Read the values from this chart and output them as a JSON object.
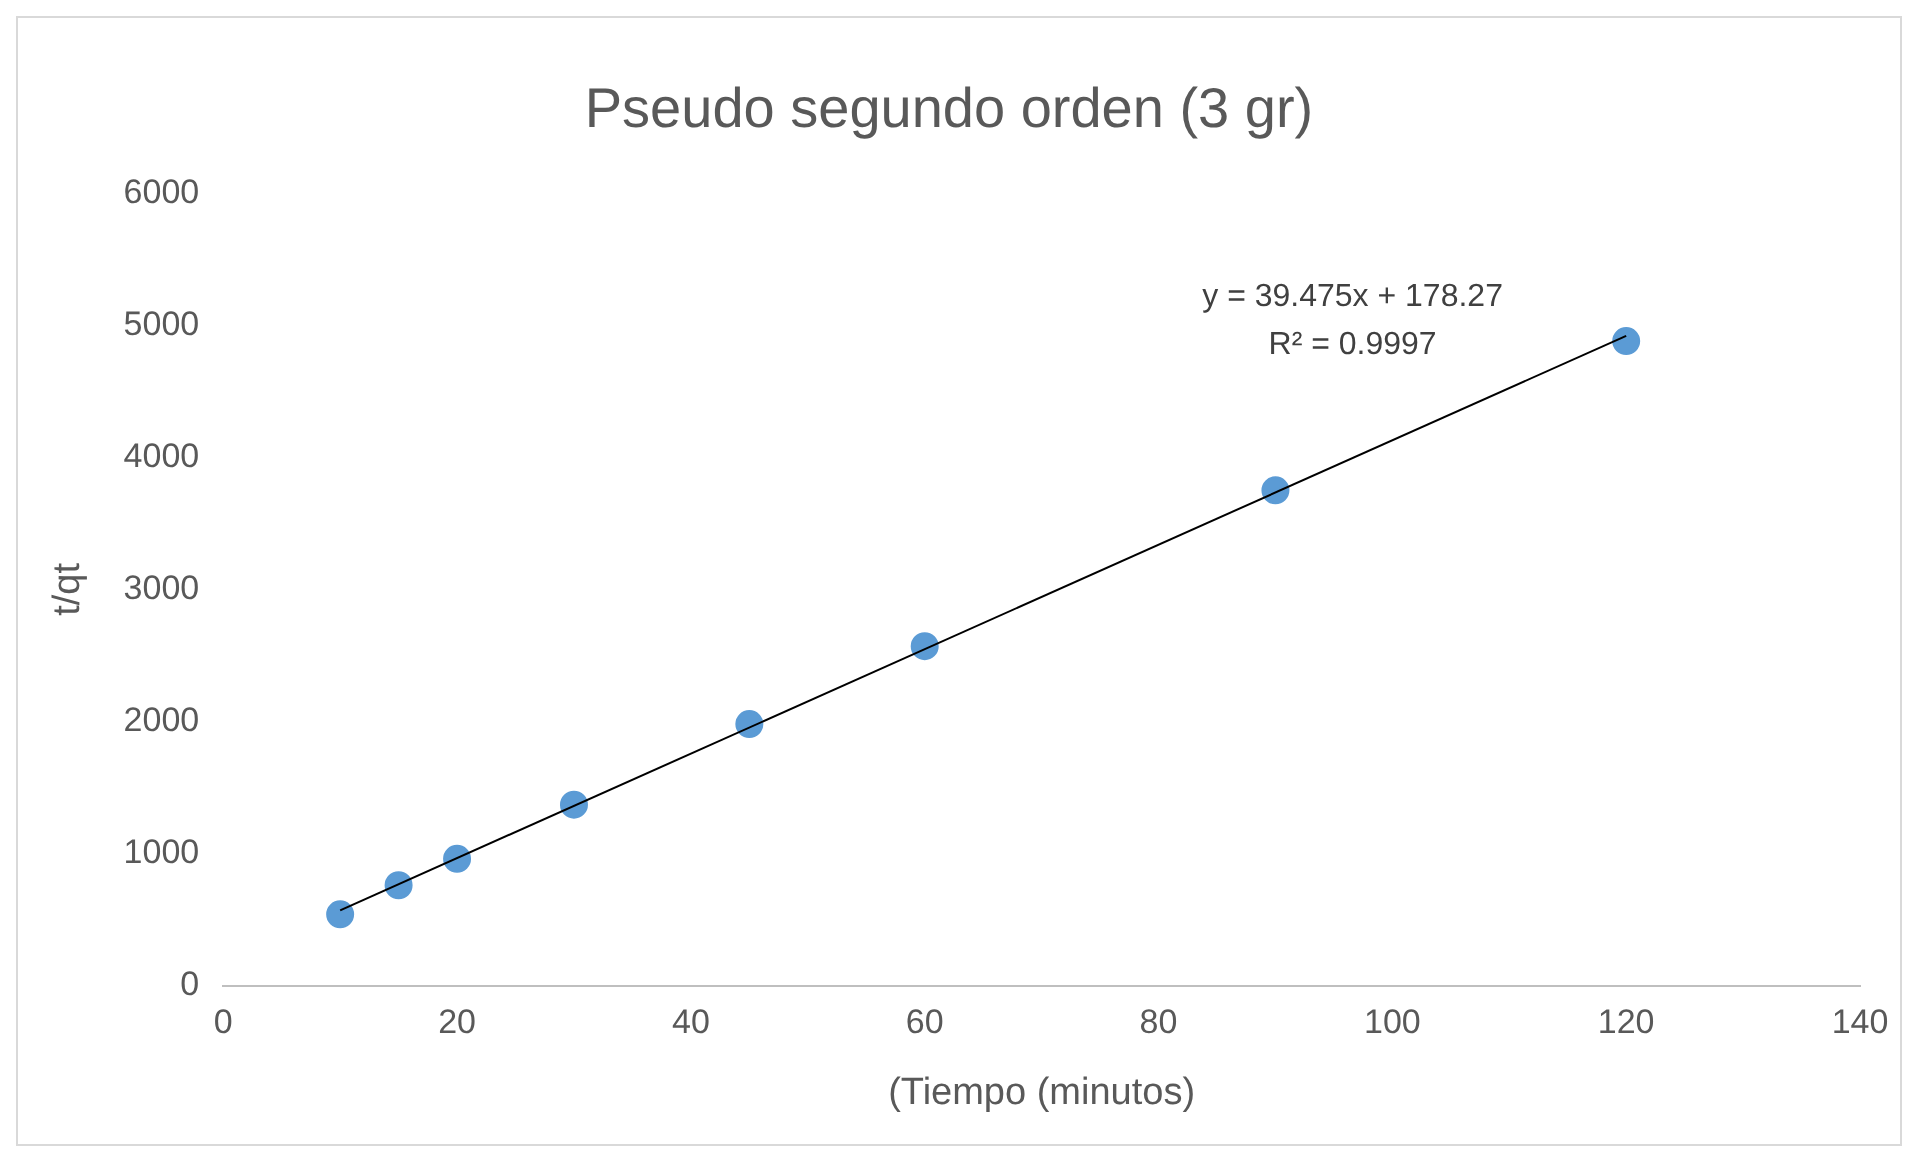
{
  "chart_data": {
    "type": "scatter",
    "title": "Pseudo segundo orden (3 gr)",
    "xlabel": "(Tiempo (minutos)",
    "ylabel": "t/qt",
    "series": [
      {
        "color": "#5b9bd5",
        "x": [
          10,
          15,
          20,
          30,
          45,
          60,
          90,
          120
        ],
        "values": [
          540,
          760,
          960,
          1370,
          1980,
          2570,
          3750,
          4880
        ],
        "marker": "circle"
      },
      {
        "type": "line",
        "color": "#000000",
        "x": [
          10,
          120
        ],
        "values": [
          570,
          4920
        ],
        "marker": "none"
      }
    ],
    "xlim": [
      0,
      140
    ],
    "xticks": [
      0,
      20,
      40,
      60,
      80,
      100,
      120,
      140
    ],
    "ylim": [
      0,
      6000
    ],
    "yticks": [
      0,
      1000,
      2000,
      3000,
      4000,
      5000,
      6000
    ],
    "annotations": [
      "y = 39.475x + 178.27",
      "R² = 0.9997"
    ],
    "grid": false,
    "legend": false
  }
}
